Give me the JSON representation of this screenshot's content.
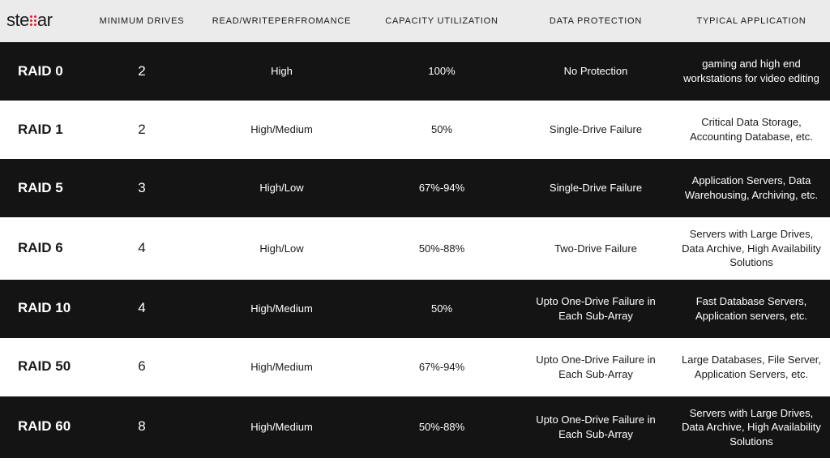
{
  "brand": {
    "prefix": "ste",
    "suffix": "ar"
  },
  "headers": {
    "min": "MINIMUM DRIVES",
    "perf": "READ/WRITEPERFROMANCE",
    "cap": "CAPACITY UTILIZATION",
    "prot": "DATA PROTECTION",
    "app": "TYPICAL APPLICATION"
  },
  "rows": [
    {
      "raid": "RAID 0",
      "min": "2",
      "perf": "High",
      "cap": "100%",
      "prot": "No Protection",
      "app": "gaming and high end workstations for video editing",
      "dark": true
    },
    {
      "raid": "RAID 1",
      "min": "2",
      "perf": "High/Medium",
      "cap": "50%",
      "prot": "Single-Drive Failure",
      "app": "Critical Data Storage, Accounting Database, etc.",
      "dark": false
    },
    {
      "raid": "RAID 5",
      "min": "3",
      "perf": "High/Low",
      "cap": "67%-94%",
      "prot": "Single-Drive Failure",
      "app": "Application Servers, Data Warehousing, Archiving, etc.",
      "dark": true
    },
    {
      "raid": "RAID 6",
      "min": "4",
      "perf": "High/Low",
      "cap": "50%-88%",
      "prot": "Two-Drive Failure",
      "app": "Servers with Large Drives, Data Archive, High Availability Solutions",
      "dark": false
    },
    {
      "raid": "RAID 10",
      "min": "4",
      "perf": "High/Medium",
      "cap": "50%",
      "prot": "Upto One-Drive Failure in Each Sub-Array",
      "app": "Fast Database Servers, Application servers, etc.",
      "dark": true
    },
    {
      "raid": "RAID 50",
      "min": "6",
      "perf": "High/Medium",
      "cap": "67%-94%",
      "prot": "Upto One-Drive Failure in Each Sub-Array",
      "app": "Large Databases, File Server, Application Servers, etc.",
      "dark": false
    },
    {
      "raid": "RAID 60",
      "min": "8",
      "perf": "High/Medium",
      "cap": "50%-88%",
      "prot": "Upto One-Drive Failure in Each Sub-Array",
      "app": "Servers with Large Drives, Data Archive, High Availability Solutions",
      "dark": true
    }
  ],
  "colors": {
    "header_bg": "#ebebeb",
    "dark_bg": "#141414",
    "light_bg": "#ffffff",
    "accent": "#e11d2a"
  }
}
